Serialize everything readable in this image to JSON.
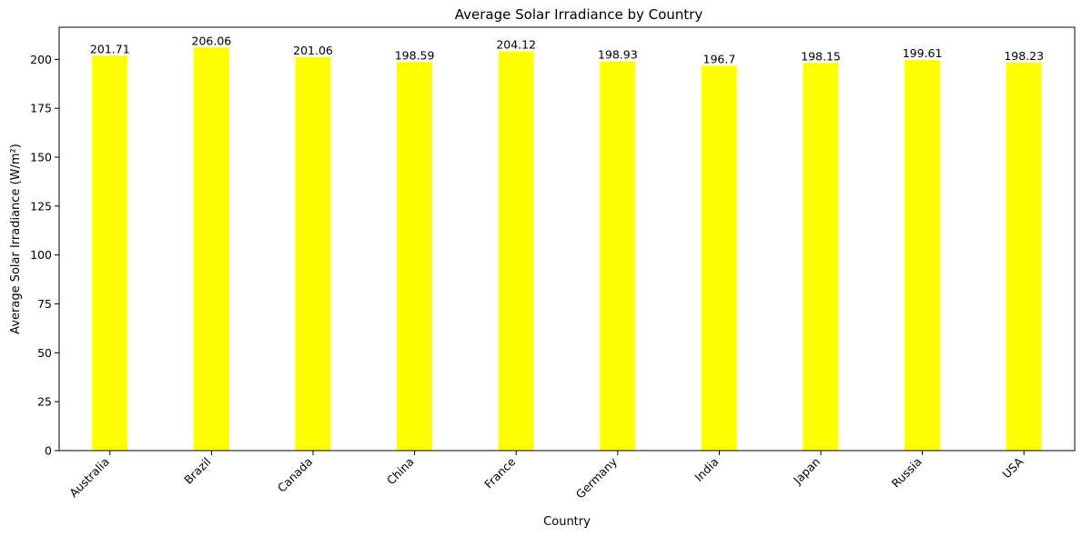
{
  "chart_data": {
    "type": "bar",
    "title": "Average Solar Irradiance by Country",
    "xlabel": "Country",
    "ylabel": "Average Solar Irradiance (W/m²)",
    "categories": [
      "Australia",
      "Brazil",
      "Canada",
      "China",
      "France",
      "Germany",
      "India",
      "Japan",
      "Russia",
      "USA"
    ],
    "values": [
      201.71,
      206.06,
      201.06,
      198.59,
      204.12,
      198.93,
      196.7,
      198.15,
      199.61,
      198.23
    ],
    "data_labels": [
      "201.71",
      "206.06",
      "201.06",
      "198.59",
      "204.12",
      "198.93",
      "196.7",
      "198.15",
      "199.61",
      "198.23"
    ],
    "ylim": [
      0,
      216.4
    ],
    "yticks": [
      0,
      25,
      50,
      75,
      100,
      125,
      150,
      175,
      200
    ],
    "bar_color": "#ffff00",
    "grid": false,
    "legend": "none"
  }
}
